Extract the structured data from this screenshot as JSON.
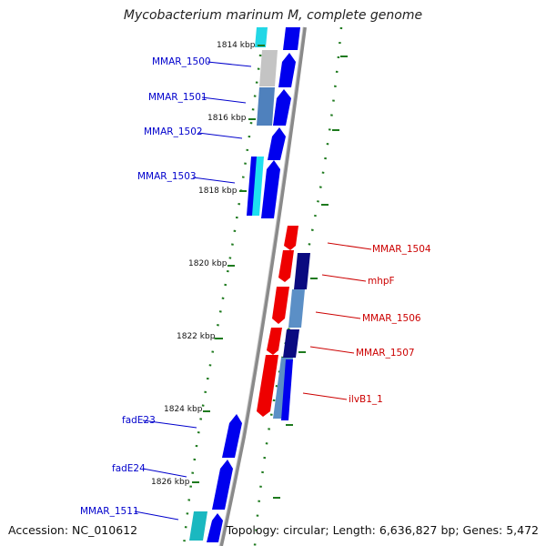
{
  "title": "Mycobacterium marinum M, complete genome",
  "accession": "Accession: NC_010612",
  "summary": "Topology: circular; Length: 6,636,827 bp; Genes: 5,472",
  "colors": {
    "forward_label": "#0000cc",
    "reverse_label": "#cc0000",
    "tick": "#1e7a1e",
    "backbone": "#888888"
  },
  "ticks": [
    "1814 kbp",
    "1816 kbp",
    "1818 kbp",
    "1820 kbp",
    "1822 kbp",
    "1824 kbp",
    "1826 kbp"
  ],
  "forward_genes": [
    "MMAR_1500",
    "MMAR_1501",
    "MMAR_1502",
    "MMAR_1503",
    "fadE23",
    "fadE24",
    "MMAR_1511"
  ],
  "reverse_genes": [
    "MMAR_1504",
    "mhpF",
    "MMAR_1506",
    "MMAR_1507",
    "ilvB1_1"
  ]
}
